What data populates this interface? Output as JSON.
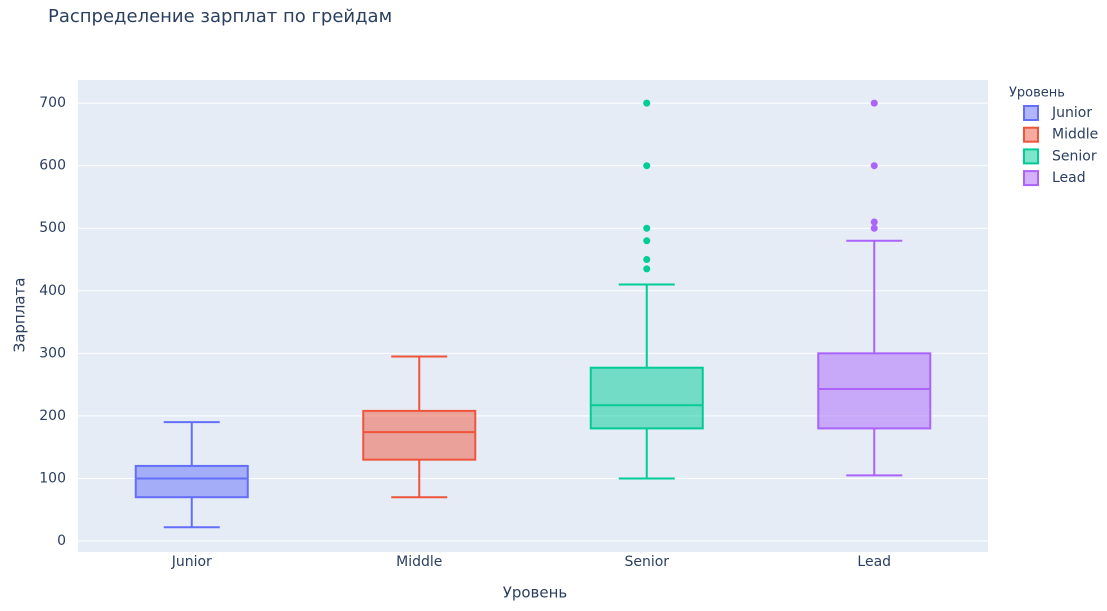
{
  "chart_data": {
    "type": "box",
    "title": "Распределение зарплат по грейдам",
    "x_label": "Уровень",
    "y_label": "Зарплата",
    "legend_title": "Уровень",
    "categories": [
      "Junior",
      "Middle",
      "Senior",
      "Lead"
    ],
    "series": [
      {
        "name": "Junior",
        "color": "#636efa",
        "lowerfence": 22,
        "q1": 70,
        "median": 100,
        "q3": 120,
        "upperfence": 190,
        "outliers": []
      },
      {
        "name": "Middle",
        "color": "#ef553b",
        "lowerfence": 70,
        "q1": 130,
        "median": 174,
        "q3": 208,
        "upperfence": 295,
        "outliers": []
      },
      {
        "name": "Senior",
        "color": "#00cc96",
        "lowerfence": 100,
        "q1": 180,
        "median": 217,
        "q3": 277,
        "upperfence": 410,
        "outliers": [
          435,
          450,
          480,
          500,
          600,
          700
        ]
      },
      {
        "name": "Lead",
        "color": "#ab63fa",
        "lowerfence": 105,
        "q1": 180,
        "median": 243,
        "q3": 300,
        "upperfence": 480,
        "outliers": [
          500,
          510,
          600,
          700
        ]
      }
    ],
    "ylim": [
      -17.6,
      737
    ],
    "yticks": [
      0,
      100,
      200,
      300,
      400,
      500,
      600,
      700
    ],
    "grid": true,
    "legend_position": "right"
  }
}
